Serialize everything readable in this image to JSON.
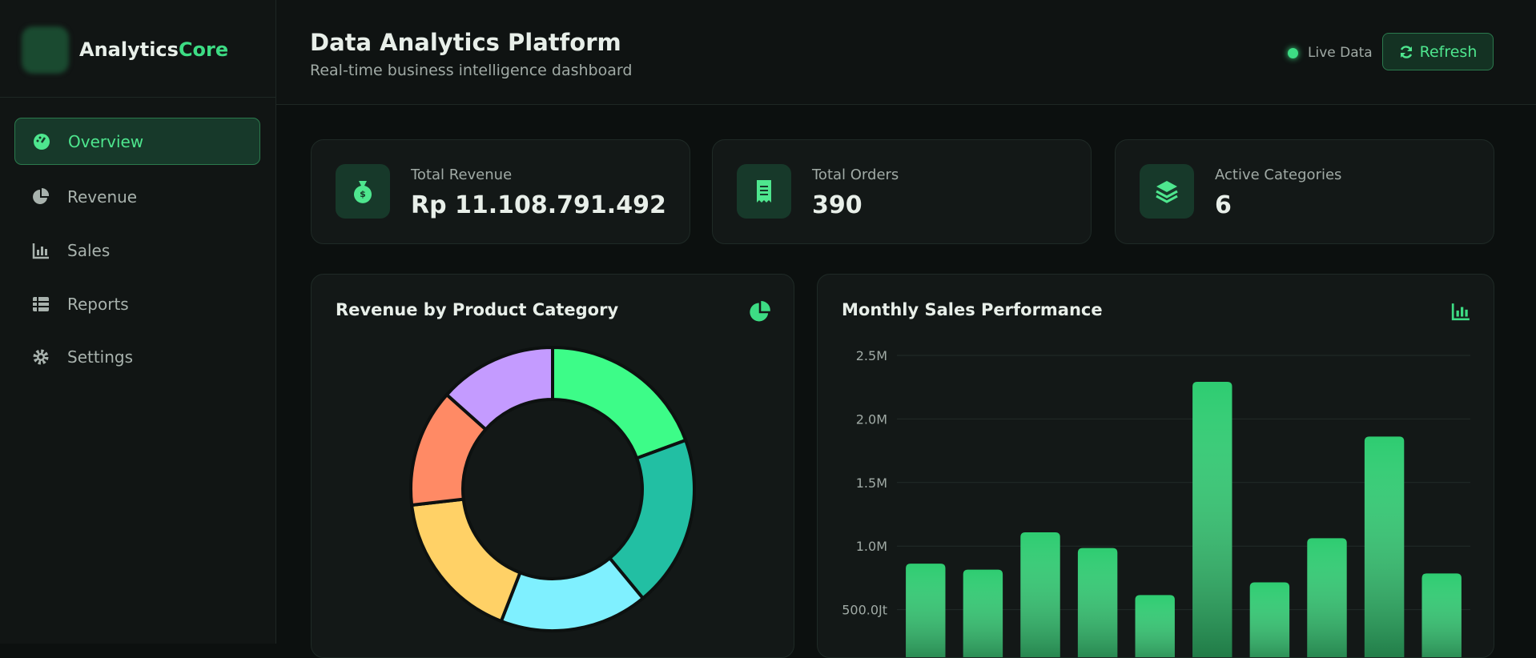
{
  "sidebar": {
    "brand": [
      "Analytics",
      "Core"
    ],
    "nav": [
      "Overview",
      "Revenue",
      "Sales",
      "Reports",
      "Settings"
    ]
  },
  "header": {
    "title": "Data Analytics Platform",
    "subtitle": "Real-time business intelligence dashboard",
    "status": "Live Data",
    "button": "Refresh"
  },
  "stats": [
    {
      "label": "Total Revenue",
      "value": "Rp 11.108.791.492"
    },
    {
      "label": "Total Orders",
      "value": 390
    },
    {
      "label": "Active Categories",
      "value": 6
    }
  ],
  "chart_data": [
    {
      "type": "pie",
      "title": "Revenue by Product Category",
      "values": [
        19.4,
        19.6,
        16.9,
        17.3,
        13.4,
        13.4
      ],
      "colors": [
        "#3dfc88",
        "#22bfa3",
        "#7ff0ff",
        "#ffd166",
        "#ff8a65",
        "#c49bff"
      ]
    },
    {
      "type": "bar",
      "title": "Monthly Sales Performance",
      "values": [
        862000,
        815000,
        1108000,
        985000,
        615000,
        2292000,
        715000,
        1062000,
        1862000,
        785000
      ],
      "color": "#2ecc71",
      "ylim": [
        0,
        2500000
      ],
      "yticks": [
        {
          "value": 500000,
          "label": "500.0Jt"
        },
        {
          "value": 1000000,
          "label": "1.0M"
        },
        {
          "value": 1500000,
          "label": "1.5M"
        },
        {
          "value": 2000000,
          "label": "2.0M"
        },
        {
          "value": 2500000,
          "label": "2.5M"
        }
      ],
      "grid": true
    }
  ]
}
